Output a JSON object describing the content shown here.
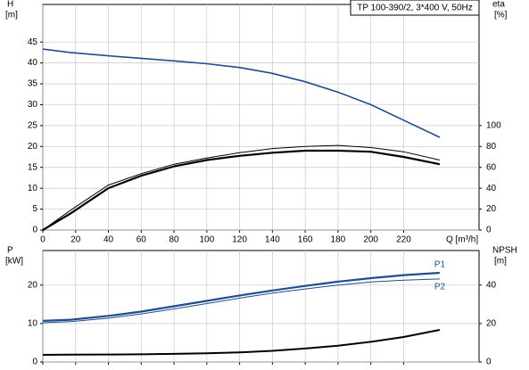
{
  "chart_data": [
    {
      "type": "line",
      "title": "TP 100-390/2, 3*400 V, 50Hz",
      "ylabel": "H",
      "yunit": "[m]",
      "y2label": "eta",
      "y2unit": "[%]",
      "xlabel": "Q [m³/h]",
      "x": [
        0,
        17,
        40,
        60,
        80,
        100,
        120,
        140,
        160,
        180,
        200,
        220,
        242
      ],
      "xlim": [
        0,
        266
      ],
      "xticks": [
        0,
        20,
        40,
        60,
        80,
        100,
        120,
        140,
        160,
        180,
        200,
        220
      ],
      "ylim": [
        0,
        54
      ],
      "yticks": [
        0,
        5,
        10,
        15,
        20,
        25,
        30,
        35,
        40,
        45
      ],
      "y2lim": [
        0,
        216
      ],
      "y2ticks": [
        0,
        20,
        40,
        60,
        80,
        100
      ],
      "grid": true,
      "series": [
        {
          "color": "#1f4e8c",
          "values": [
            43.3,
            42.5,
            41.7,
            41.1,
            40.5,
            39.8,
            38.9,
            37.5,
            35.5,
            33.0,
            30.0,
            26.3,
            22.2
          ]
        },
        {
          "color": "#000000",
          "axis": "y2",
          "values": [
            0,
            19,
            43,
            54,
            63,
            69,
            74,
            78,
            80,
            81,
            79,
            75,
            67
          ]
        },
        {
          "color": "#000000",
          "axis": "y2",
          "values": [
            0,
            16,
            40,
            52,
            61,
            67,
            71,
            74,
            76,
            76,
            75,
            70,
            63
          ]
        }
      ]
    },
    {
      "type": "line",
      "ylabel": "P",
      "yunit": "[kW]",
      "y2label": "NPSH",
      "y2unit": "[m]",
      "x": [
        0,
        17,
        40,
        60,
        80,
        100,
        120,
        140,
        160,
        180,
        200,
        220,
        242
      ],
      "xlim": [
        0,
        266
      ],
      "xticks": [
        0,
        20,
        40,
        60,
        80,
        100,
        120,
        140,
        160,
        180,
        200,
        220
      ],
      "ylim": [
        0,
        29
      ],
      "yticks": [
        0,
        10,
        20
      ],
      "y2lim": [
        0,
        58
      ],
      "y2ticks": [
        0,
        20,
        40
      ],
      "grid": true,
      "series": [
        {
          "name": "P1",
          "color": "#1f4e8c",
          "values": [
            10.7,
            11.0,
            12.0,
            13.1,
            14.5,
            15.9,
            17.3,
            18.6,
            19.8,
            20.9,
            21.8,
            22.6,
            23.2
          ]
        },
        {
          "name": "P2",
          "color": "#1f4e8c",
          "values": [
            10.2,
            10.5,
            11.4,
            12.5,
            13.8,
            15.2,
            16.6,
            17.9,
            19.0,
            20.0,
            20.8,
            21.3,
            21.6
          ]
        },
        {
          "color": "#000000",
          "axis": "y2",
          "values": [
            3.7,
            3.8,
            3.9,
            4.0,
            4.2,
            4.5,
            5.0,
            5.8,
            7.0,
            8.5,
            10.5,
            13.0,
            16.7
          ]
        }
      ]
    }
  ]
}
